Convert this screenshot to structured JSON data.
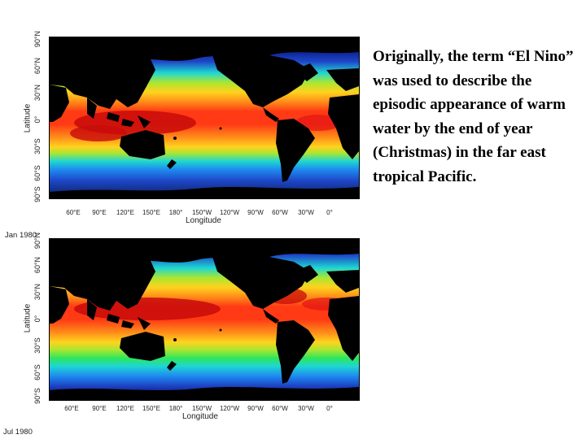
{
  "map_top": {
    "y_axis_title": "Latitude",
    "x_axis_title": "Longitude",
    "lat_labels": [
      "90°N",
      "60°N",
      "30°N",
      "0°",
      "30°S",
      "60°S",
      "90°S"
    ],
    "lon_labels": [
      "60°E",
      "90°E",
      "120°E",
      "150°E",
      "180°",
      "150°W",
      "120°W",
      "90°W",
      "60°W",
      "30°W",
      "0°"
    ]
  },
  "map_bottom": {
    "y_axis_title": "Latitude",
    "x_axis_title": "Longitude",
    "lat_labels": [
      "90°N",
      "60°N",
      "30°N",
      "0°",
      "30°S",
      "60°S",
      "90°S"
    ],
    "lon_labels": [
      "60°E",
      "90°E",
      "120°E",
      "150°E",
      "180°",
      "150°W",
      "120°W",
      "90°W",
      "60°W",
      "30°W",
      "0°"
    ]
  },
  "date_top": "Jan 1980",
  "date_bottom": "Jul 1980",
  "caption": "Originally, the term “El Nino” was used to describe the episodic appearance of warm water by the end of year (Christmas) in the far east tropical Pacific.",
  "colors": {
    "land": "#000000",
    "ocean_gradient_warm_to_cold": [
      "#a40000",
      "#e21414",
      "#ff5a1a",
      "#ff8c1a",
      "#ffd21e",
      "#a8e632",
      "#2ee65a",
      "#1ed7d2",
      "#1e8cf0",
      "#1e46c8",
      "#0a1e8c",
      "#00004a"
    ]
  }
}
